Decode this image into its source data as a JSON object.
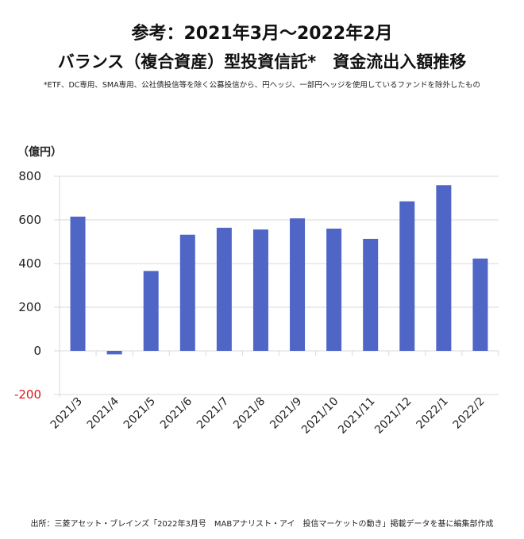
{
  "title_line1": "参考：2021年3月～2022年2月",
  "title_line2": "バランス（複合資産）型投資信託*　資金流出入額推移",
  "note": "*ETF、DC専用、SMA専用、公社債投信等を除く公募投信から、円ヘッジ、一部円ヘッジを使用しているファンドを除外したもの",
  "source": "出所：三菱アセット・ブレインズ「2022年3月号　MABアナリスト・アイ　投信マーケットの動き」掲載データを基に編集部作成",
  "chart_data": {
    "type": "bar",
    "title": "参考：2021年3月～2022年2月 バランス（複合資産）型投資信託*　資金流出入額推移",
    "ylabel": "（億円）",
    "xlabel": "",
    "categories": [
      "2021/3",
      "2021/4",
      "2021/5",
      "2021/6",
      "2021/7",
      "2021/8",
      "2021/9",
      "2021/10",
      "2021/11",
      "2021/12",
      "2022/1",
      "2022/2"
    ],
    "values": [
      615,
      -16,
      366,
      532,
      564,
      556,
      607,
      560,
      513,
      685,
      759,
      423
    ],
    "ylim": [
      -200,
      800
    ],
    "yticks": [
      "800",
      "600",
      "400",
      "200",
      "0",
      "-200"
    ],
    "grid": true,
    "legend": "none",
    "colors": {
      "bar": "#4f66c6",
      "negative_tick": "#e0151c",
      "grid": "#d9d9d9"
    }
  }
}
